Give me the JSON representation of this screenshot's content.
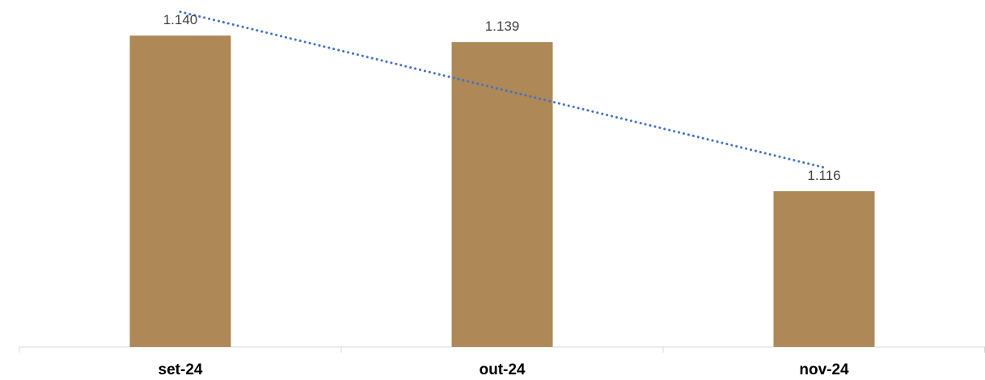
{
  "chart_data": {
    "type": "bar",
    "categories": [
      "set-24",
      "out-24",
      "nov-24"
    ],
    "values": [
      1140,
      1139,
      1116
    ],
    "value_labels": [
      "1.140",
      "1.139",
      "1.116"
    ],
    "ylim": [
      1092,
      1143
    ],
    "title": "",
    "xlabel": "",
    "ylabel": "",
    "grid": false,
    "legend": "none",
    "bar_color": "#AE8856",
    "trendline": {
      "type": "linear",
      "style": "dotted",
      "color": "#4472C4"
    }
  }
}
